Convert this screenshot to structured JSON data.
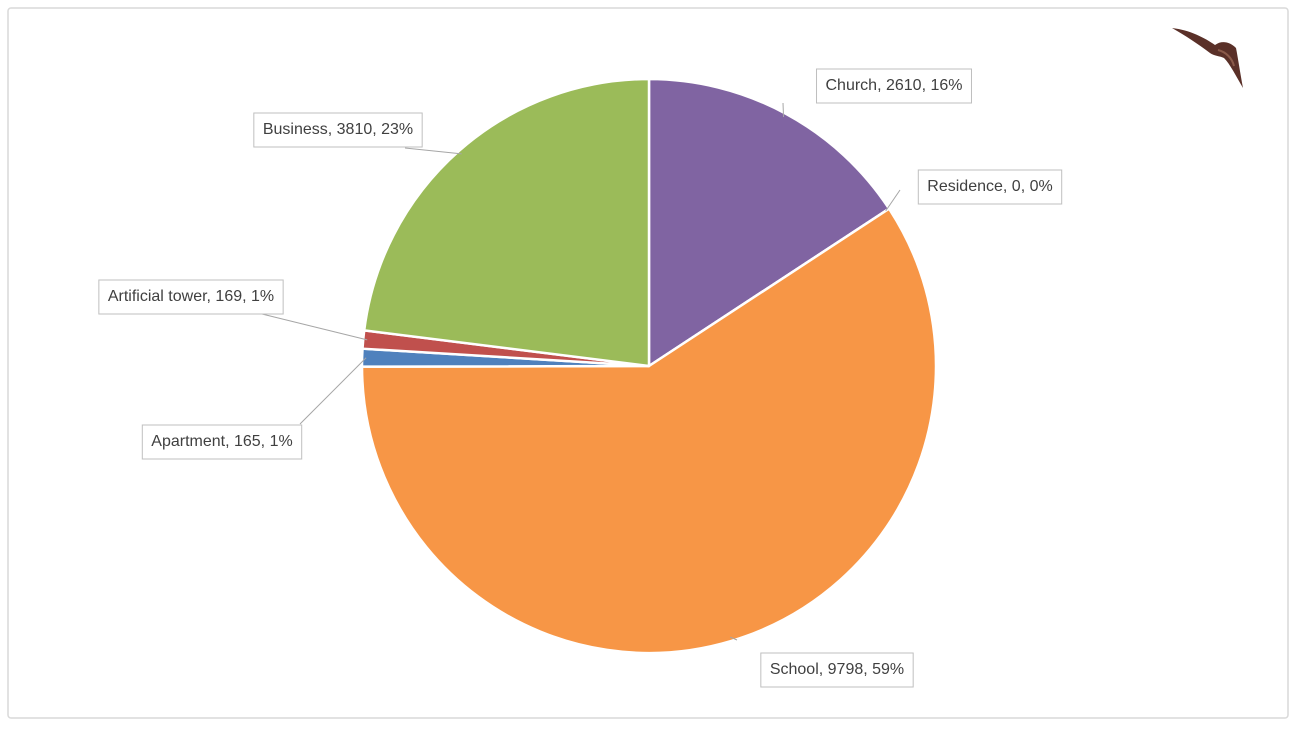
{
  "chart_data": {
    "type": "pie",
    "categories": [
      "Church",
      "Residence",
      "School",
      "Apartment",
      "Artificial tower",
      "Business"
    ],
    "values": [
      2610,
      0,
      9798,
      165,
      169,
      3810
    ],
    "value_labels": [
      "Church, 2610, 16%",
      "Residence, 0, 0%",
      "School, 9798, 59%",
      "Apartment, 165, 1%",
      "Artificial tower, 169, 1%",
      "Business, 3810, 23%"
    ],
    "colors": [
      "#8064a2",
      "#4bacc6",
      "#f79646",
      "#4f81bd",
      "#c0504d",
      "#9bbb59"
    ]
  }
}
